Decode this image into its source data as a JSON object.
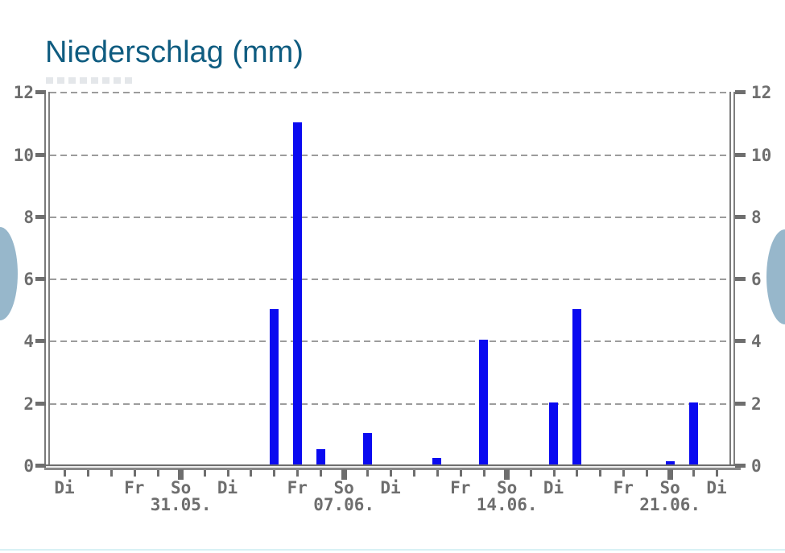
{
  "title": "Niederschlag (mm)",
  "colors": {
    "title": "#0f5c80",
    "bar": "#0a0af0",
    "axis_label": "#6e6e6e",
    "grid": "#9c9c9c",
    "nav_button": "#97b7cb",
    "bottom_rule": "#d8f1f5"
  },
  "nav": {
    "left_button": "scroll-previous",
    "right_button": "scroll-next"
  },
  "chart_data": {
    "type": "bar",
    "title": "Niederschlag (mm)",
    "ylabel": "",
    "unit": "mm",
    "ylim": [
      0,
      12
    ],
    "y_ticks": [
      0,
      2,
      4,
      6,
      8,
      10,
      12
    ],
    "y_axis_sides": "both",
    "grid": "dashed-horizontal",
    "legend": "none",
    "x_axis": "daily ticks, weekday labels Di/Fr/So, Sunday dates below",
    "days": [
      {
        "weekday": "Di",
        "date": "",
        "sunday": false,
        "value": 0
      },
      {
        "weekday": "",
        "date": "",
        "sunday": false,
        "value": 0
      },
      {
        "weekday": "",
        "date": "",
        "sunday": false,
        "value": 0
      },
      {
        "weekday": "Fr",
        "date": "",
        "sunday": false,
        "value": 0
      },
      {
        "weekday": "",
        "date": "",
        "sunday": false,
        "value": 0
      },
      {
        "weekday": "So",
        "date": "31.05.",
        "sunday": true,
        "value": 0
      },
      {
        "weekday": "",
        "date": "",
        "sunday": false,
        "value": 0
      },
      {
        "weekday": "Di",
        "date": "",
        "sunday": false,
        "value": 0
      },
      {
        "weekday": "",
        "date": "",
        "sunday": false,
        "value": 0
      },
      {
        "weekday": "",
        "date": "",
        "sunday": false,
        "value": 5
      },
      {
        "weekday": "Fr",
        "date": "",
        "sunday": false,
        "value": 11
      },
      {
        "weekday": "",
        "date": "",
        "sunday": false,
        "value": 0.5
      },
      {
        "weekday": "So",
        "date": "07.06.",
        "sunday": true,
        "value": 0
      },
      {
        "weekday": "",
        "date": "",
        "sunday": false,
        "value": 1
      },
      {
        "weekday": "Di",
        "date": "",
        "sunday": false,
        "value": 0
      },
      {
        "weekday": "",
        "date": "",
        "sunday": false,
        "value": 0
      },
      {
        "weekday": "",
        "date": "",
        "sunday": false,
        "value": 0.2
      },
      {
        "weekday": "Fr",
        "date": "",
        "sunday": false,
        "value": 0
      },
      {
        "weekday": "",
        "date": "",
        "sunday": false,
        "value": 4
      },
      {
        "weekday": "So",
        "date": "14.06.",
        "sunday": true,
        "value": 0
      },
      {
        "weekday": "",
        "date": "",
        "sunday": false,
        "value": 0
      },
      {
        "weekday": "Di",
        "date": "",
        "sunday": false,
        "value": 2
      },
      {
        "weekday": "",
        "date": "",
        "sunday": false,
        "value": 5
      },
      {
        "weekday": "",
        "date": "",
        "sunday": false,
        "value": 0
      },
      {
        "weekday": "Fr",
        "date": "",
        "sunday": false,
        "value": 0
      },
      {
        "weekday": "",
        "date": "",
        "sunday": false,
        "value": 0
      },
      {
        "weekday": "So",
        "date": "21.06.",
        "sunday": true,
        "value": 0.1
      },
      {
        "weekday": "",
        "date": "",
        "sunday": false,
        "value": 2
      },
      {
        "weekday": "Di",
        "date": "",
        "sunday": false,
        "value": 0
      }
    ]
  }
}
